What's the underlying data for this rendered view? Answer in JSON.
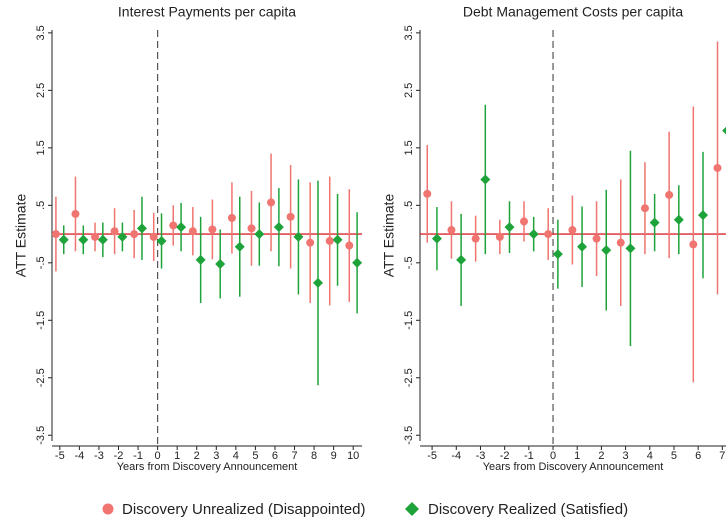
{
  "chart_data": [
    {
      "type": "errorbar",
      "title": "Interest Payments per capita",
      "x_label": "Years from Discovery Announcement",
      "y_label": "ATT Estimate",
      "x": [
        -5,
        -4,
        -3,
        -2,
        -1,
        0,
        1,
        2,
        3,
        4,
        5,
        6,
        7,
        8,
        9,
        10
      ],
      "xlim": [
        -5.4,
        10.45
      ],
      "xticks": [
        -5,
        -4,
        -3,
        -2,
        -1,
        0,
        1,
        2,
        3,
        4,
        5,
        6,
        7,
        8,
        9,
        10
      ],
      "ylim": [
        -3.6,
        3.55
      ],
      "yticks": [
        {
          "value": -3.5,
          "label": "-3.5"
        },
        {
          "value": -2.5,
          "label": "-2.5"
        },
        {
          "value": -1.5,
          "label": "-1.5"
        },
        {
          "value": -0.5,
          "label": "-.5"
        },
        {
          "value": 0.5,
          "label": ".5"
        },
        1.5,
        2.5,
        3.5
      ],
      "series": [
        {
          "name": "Discovery Unrealized (Disappointed)",
          "color": "#f07470",
          "marker": "circle",
          "values": [
            0.0,
            0.35,
            -0.05,
            0.05,
            0.0,
            -0.05,
            0.15,
            0.05,
            0.08,
            0.28,
            0.1,
            0.55,
            0.3,
            -0.15,
            -0.12,
            -0.2
          ],
          "errors": [
            0.65,
            0.65,
            0.25,
            0.4,
            0.42,
            0.42,
            0.35,
            0.42,
            0.52,
            0.62,
            0.65,
            0.85,
            0.9,
            1.05,
            1.12,
            0.98
          ]
        },
        {
          "name": "Discovery Realized (Satisfied)",
          "color": "#1ea33a",
          "marker": "diamond",
          "values": [
            -0.1,
            -0.1,
            -0.1,
            -0.05,
            0.1,
            -0.12,
            0.12,
            -0.45,
            -0.52,
            -0.22,
            0.0,
            0.12,
            -0.05,
            -0.85,
            -0.1,
            -0.5
          ],
          "errors": [
            0.25,
            0.25,
            0.3,
            0.25,
            0.55,
            0.48,
            0.42,
            0.75,
            0.6,
            0.87,
            0.55,
            0.68,
            1.0,
            1.78,
            0.8,
            0.88
          ]
        }
      ]
    },
    {
      "type": "errorbar",
      "title": "Debt Management Costs per capita",
      "x_label": "Years from Discovery Announcement",
      "y_label": "ATT Estimate",
      "x": [
        -5,
        -4,
        -3,
        -2,
        -1,
        0,
        1,
        2,
        3,
        4,
        5,
        6,
        7
      ],
      "xlim": [
        -5.5,
        10.5
      ],
      "xticks": [
        -5,
        -4,
        -3,
        -2,
        -1,
        0,
        1,
        2,
        3,
        4,
        5,
        6,
        7
      ],
      "ylim": [
        -3.6,
        3.55
      ],
      "yticks": [
        {
          "value": -3.5,
          "label": "-3.5"
        },
        {
          "value": -2.5,
          "label": "-2.5"
        },
        {
          "value": -1.5,
          "label": "-1.5"
        },
        {
          "value": -0.5,
          "label": "-.5"
        },
        {
          "value": 0.5,
          "label": ".5"
        },
        1.5,
        2.5,
        3.5
      ],
      "series": [
        {
          "color": "#f07470",
          "marker": "circle",
          "values": [
            0.7,
            0.07,
            -0.08,
            -0.05,
            0.22,
            0.0,
            0.07,
            -0.08,
            -0.15,
            0.45,
            0.68,
            -0.18,
            1.15
          ],
          "errors": [
            0.85,
            0.5,
            0.4,
            0.3,
            0.35,
            0.45,
            0.6,
            0.65,
            1.1,
            0.8,
            1.1,
            2.4,
            2.2
          ]
        },
        {
          "color": "#1ea33a",
          "marker": "diamond",
          "values": [
            -0.08,
            -0.45,
            0.95,
            0.12,
            0.0,
            -0.35,
            -0.22,
            -0.28,
            -0.25,
            0.2,
            0.25,
            0.33,
            1.8
          ],
          "errors": [
            0.55,
            0.8,
            1.3,
            0.45,
            0.3,
            0.6,
            0.7,
            1.05,
            1.7,
            0.5,
            0.6,
            1.1,
            0.5
          ]
        }
      ]
    }
  ]
}
